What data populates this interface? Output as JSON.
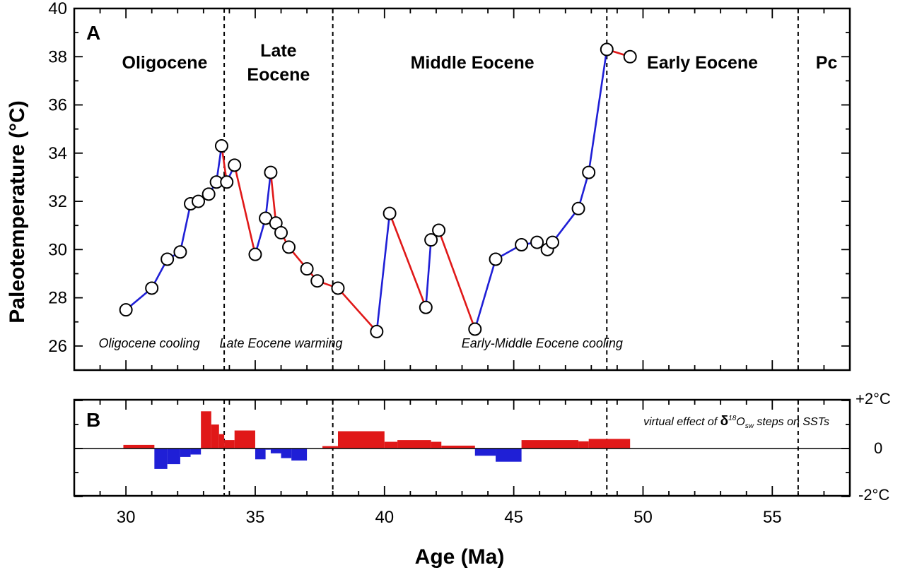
{
  "chart_data": {
    "type": "line",
    "x_axis": {
      "label": "Age (Ma)",
      "range": [
        28,
        58
      ],
      "ticks": [
        "30",
        "35",
        "40",
        "45",
        "50",
        "55"
      ]
    },
    "panel_a": {
      "letter": "A",
      "ylabel": "Paleotemperature  (°C)",
      "ylim": [
        25,
        40
      ],
      "yticks": [
        "26",
        "28",
        "30",
        "32",
        "34",
        "36",
        "38",
        "40"
      ],
      "series": [
        {
          "x": [
            30.0,
            31.0,
            31.6,
            32.1,
            32.5,
            32.8,
            33.2,
            33.5,
            33.7,
            33.9,
            34.2,
            35.0,
            35.4,
            35.6,
            35.8,
            36.0,
            36.3,
            37.0,
            37.4,
            38.2,
            39.7,
            40.2,
            41.6,
            41.8,
            42.1,
            43.5,
            44.3,
            45.3,
            45.9,
            46.3,
            46.5,
            47.5,
            47.9,
            48.6,
            49.5
          ],
          "y": [
            27.5,
            28.4,
            29.6,
            29.9,
            31.9,
            32.0,
            32.3,
            32.8,
            34.3,
            32.8,
            33.5,
            29.8,
            31.3,
            33.2,
            31.1,
            30.7,
            30.1,
            29.2,
            28.7,
            28.4,
            26.6,
            31.5,
            27.6,
            30.4,
            30.8,
            26.7,
            29.6,
            30.2,
            30.3,
            30.0,
            30.3,
            31.7,
            33.2,
            38.3,
            38.0
          ]
        }
      ],
      "segment_colors": {
        "warming": "#1f1fd6",
        "cooling": "#e01818"
      },
      "divisions": [
        33.8,
        38.0,
        48.6,
        56.0
      ],
      "epochs": [
        {
          "label": "Oligocene",
          "x": 31.5
        },
        {
          "label_line1": "Late",
          "label_line2": "Eocene",
          "x": 35.9
        },
        {
          "label": "Middle Eocene",
          "x": 43.4
        },
        {
          "label": "Early Eocene",
          "x": 52.3
        },
        {
          "label": "Pc",
          "x": 57.1
        }
      ],
      "trend_annotations": [
        {
          "label": "Oligocene cooling",
          "x": 30.9
        },
        {
          "label": "Late Eocene warming",
          "x": 36.0
        },
        {
          "label": "Early-Middle Eocene cooling",
          "x": 46.1
        }
      ]
    },
    "panel_b": {
      "letter": "B",
      "ylim": [
        -2,
        2
      ],
      "right_labels": [
        "+2°C",
        "0",
        "-2°C"
      ],
      "note_prefix": "virtual effect of ",
      "note_delta": "δ",
      "note_sup": "18",
      "note_O": "O",
      "note_sub": "sw",
      "note_suffix": " steps on SSTs",
      "colors": {
        "positive": "#e01818",
        "negative": "#1f1fd6"
      },
      "bars": [
        {
          "x0": 29.9,
          "x1": 31.1,
          "value": 0.15
        },
        {
          "x0": 31.1,
          "x1": 31.6,
          "value": -0.85
        },
        {
          "x0": 31.6,
          "x1": 32.1,
          "value": -0.65
        },
        {
          "x0": 32.1,
          "x1": 32.5,
          "value": -0.35
        },
        {
          "x0": 32.5,
          "x1": 32.9,
          "value": -0.25
        },
        {
          "x0": 32.9,
          "x1": 33.3,
          "value": 1.55
        },
        {
          "x0": 33.3,
          "x1": 33.6,
          "value": 1.0
        },
        {
          "x0": 33.6,
          "x1": 33.8,
          "value": 0.6
        },
        {
          "x0": 33.8,
          "x1": 34.2,
          "value": 0.35
        },
        {
          "x0": 34.2,
          "x1": 35.0,
          "value": 0.75
        },
        {
          "x0": 35.0,
          "x1": 35.4,
          "value": -0.45
        },
        {
          "x0": 35.4,
          "x1": 35.6,
          "value": -0.05
        },
        {
          "x0": 35.6,
          "x1": 36.0,
          "value": -0.2
        },
        {
          "x0": 36.0,
          "x1": 36.4,
          "value": -0.4
        },
        {
          "x0": 36.4,
          "x1": 37.0,
          "value": -0.5
        },
        {
          "x0": 37.6,
          "x1": 38.2,
          "value": 0.1
        },
        {
          "x0": 38.2,
          "x1": 40.0,
          "value": 0.72
        },
        {
          "x0": 40.0,
          "x1": 40.5,
          "value": 0.28
        },
        {
          "x0": 40.5,
          "x1": 41.8,
          "value": 0.35
        },
        {
          "x0": 41.8,
          "x1": 42.2,
          "value": 0.28
        },
        {
          "x0": 42.2,
          "x1": 43.5,
          "value": 0.12
        },
        {
          "x0": 43.5,
          "x1": 44.3,
          "value": -0.3
        },
        {
          "x0": 44.3,
          "x1": 45.3,
          "value": -0.55
        },
        {
          "x0": 45.3,
          "x1": 47.5,
          "value": 0.35
        },
        {
          "x0": 47.5,
          "x1": 47.9,
          "value": 0.3
        },
        {
          "x0": 47.9,
          "x1": 49.5,
          "value": 0.4
        }
      ]
    }
  }
}
